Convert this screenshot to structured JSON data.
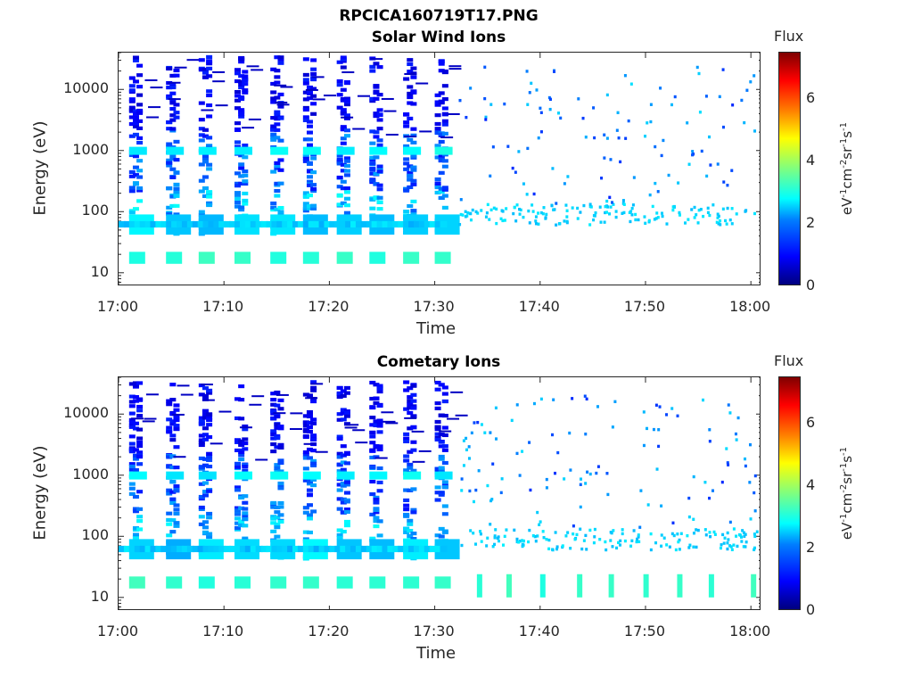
{
  "figure": {
    "filename": "RPCICA160719T17.PNG"
  },
  "chart_data": [
    {
      "type": "heatmap",
      "title": "Solar Wind Ions",
      "xlabel": "Time",
      "ylabel": "Energy (eV)",
      "xticks": [
        "17:00",
        "17:10",
        "17:20",
        "17:30",
        "17:40",
        "17:50",
        "18:00"
      ],
      "yticks": [
        "10",
        "100",
        "1000",
        "10000"
      ],
      "yscale": "log",
      "ylim": [
        6,
        40000
      ],
      "xlim": [
        "17:00",
        "18:01"
      ],
      "colorbar": {
        "label": "Flux",
        "unit": "eV-1cm-2sr-1s-1",
        "ticks": [
          "0",
          "2",
          "4",
          "6"
        ],
        "range": [
          0,
          7.5
        ],
        "colormap": "jet"
      },
      "activity_summary": "Dense burst structure with flux ~1-3 between 17:00 and 17:31 (energies ~8 eV to 30 keV); sparse isolated low-flux points after 17:32 concentrated near 60-100 eV and ~1 keV"
    },
    {
      "type": "heatmap",
      "title": "Cometary Ions",
      "xlabel": "Time",
      "ylabel": "Energy (eV)",
      "xticks": [
        "17:00",
        "17:10",
        "17:20",
        "17:30",
        "17:40",
        "17:50",
        "18:00"
      ],
      "yticks": [
        "10",
        "100",
        "1000",
        "10000"
      ],
      "yscale": "log",
      "ylim": [
        6,
        40000
      ],
      "xlim": [
        "17:00",
        "18:01"
      ],
      "colorbar": {
        "label": "Flux",
        "unit": "eV-1cm-2sr-1s-1",
        "ticks": [
          "0",
          "2",
          "4",
          "6"
        ],
        "range": [
          0,
          7.5
        ],
        "colormap": "jet"
      },
      "activity_summary": "Dense burst structure with flux ~1-3 between 17:00 and 17:31; after 17:32 sparse points plus recurring low-energy (~10-20 eV) green bursts of flux ~3"
    }
  ]
}
